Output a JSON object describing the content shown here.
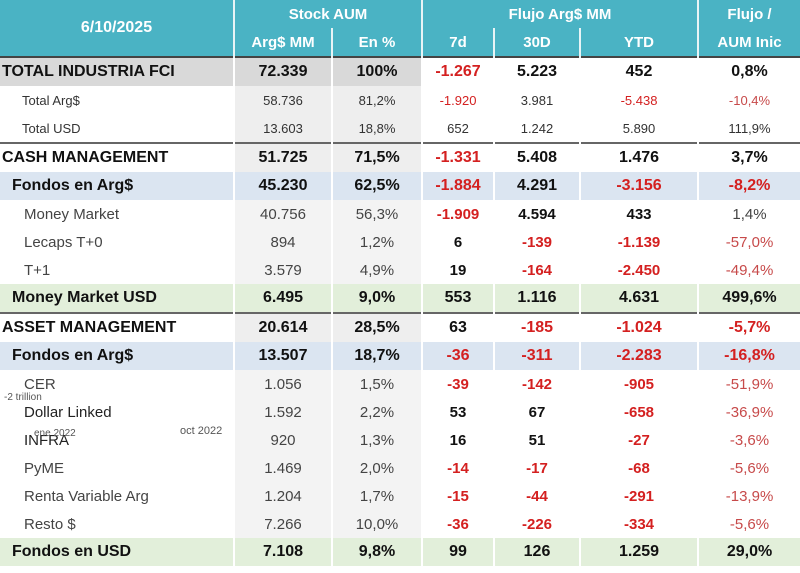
{
  "header": {
    "date": "6/10/2025",
    "stock_group": "Stock AUM",
    "flow_group": "Flujo Arg$ MM",
    "ratio_line1": "Flujo /",
    "ratio_line2": "AUM Inic",
    "col_stock_mm": "Arg$ MM",
    "col_stock_pct": "En %",
    "col_7d": "7d",
    "col_30d": "30D",
    "col_ytd": "YTD"
  },
  "rows": [
    {
      "label": "TOTAL INDUSTRIA FCI",
      "aum": "72.339",
      "pct": "100%",
      "d7": "-1.267",
      "d30": "5.223",
      "ytd": "452",
      "ratio": "0,8%"
    },
    {
      "label": "Total Arg$",
      "aum": "58.736",
      "pct": "81,2%",
      "d7": "-1.920",
      "d30": "3.981",
      "ytd": "-5.438",
      "ratio": "-10,4%"
    },
    {
      "label": "Total USD",
      "aum": "13.603",
      "pct": "18,8%",
      "d7": "652",
      "d30": "1.242",
      "ytd": "5.890",
      "ratio": "111,9%"
    },
    {
      "label": "CASH MANAGEMENT",
      "aum": "51.725",
      "pct": "71,5%",
      "d7": "-1.331",
      "d30": "5.408",
      "ytd": "1.476",
      "ratio": "3,7%"
    },
    {
      "label": "Fondos en Arg$",
      "aum": "45.230",
      "pct": "62,5%",
      "d7": "-1.884",
      "d30": "4.291",
      "ytd": "-3.156",
      "ratio": "-8,2%"
    },
    {
      "label": "Money Market",
      "aum": "40.756",
      "pct": "56,3%",
      "d7": "-1.909",
      "d30": "4.594",
      "ytd": "433",
      "ratio": "1,4%"
    },
    {
      "label": "Lecaps T+0",
      "aum": "894",
      "pct": "1,2%",
      "d7": "6",
      "d30": "-139",
      "ytd": "-1.139",
      "ratio": "-57,0%"
    },
    {
      "label": "T+1",
      "aum": "3.579",
      "pct": "4,9%",
      "d7": "19",
      "d30": "-164",
      "ytd": "-2.450",
      "ratio": "-49,4%"
    },
    {
      "label": "Money Market USD",
      "aum": "6.495",
      "pct": "9,0%",
      "d7": "553",
      "d30": "1.116",
      "ytd": "4.631",
      "ratio": "499,6%"
    },
    {
      "label": "ASSET MANAGEMENT",
      "aum": "20.614",
      "pct": "28,5%",
      "d7": "63",
      "d30": "-185",
      "ytd": "-1.024",
      "ratio": "-5,7%"
    },
    {
      "label": "Fondos en Arg$",
      "aum": "13.507",
      "pct": "18,7%",
      "d7": "-36",
      "d30": "-311",
      "ytd": "-2.283",
      "ratio": "-16,8%"
    },
    {
      "label": "CER",
      "aum": "1.056",
      "pct": "1,5%",
      "d7": "-39",
      "d30": "-142",
      "ytd": "-905",
      "ratio": "-51,9%"
    },
    {
      "label": "Dollar Linked",
      "aum": "1.592",
      "pct": "2,2%",
      "d7": "53",
      "d30": "67",
      "ytd": "-658",
      "ratio": "-36,9%"
    },
    {
      "label": "INFRA",
      "aum": "920",
      "pct": "1,3%",
      "d7": "16",
      "d30": "51",
      "ytd": "-27",
      "ratio": "-3,6%"
    },
    {
      "label": "PyME",
      "aum": "1.469",
      "pct": "2,0%",
      "d7": "-14",
      "d30": "-17",
      "ytd": "-68",
      "ratio": "-5,6%"
    },
    {
      "label": "Renta Variable Arg",
      "aum": "1.204",
      "pct": "1,7%",
      "d7": "-15",
      "d30": "-44",
      "ytd": "-291",
      "ratio": "-13,9%"
    },
    {
      "label": "Resto $",
      "aum": "7.266",
      "pct": "10,0%",
      "d7": "-36",
      "d30": "-226",
      "ytd": "-334",
      "ratio": "-5,6%"
    },
    {
      "label": "Fondos en USD",
      "aum": "7.108",
      "pct": "9,8%",
      "d7": "99",
      "d30": "126",
      "ytd": "1.259",
      "ratio": "29,0%"
    }
  ],
  "overlay": {
    "trillion": "-2 trillion",
    "ene": "ene 2022",
    "oct": "oct 2022"
  },
  "colors": {
    "header_teal": "#4ab3c4",
    "negative_red": "#d42020",
    "group_blue": "#dbe5f1",
    "group_green": "#e2efda"
  }
}
